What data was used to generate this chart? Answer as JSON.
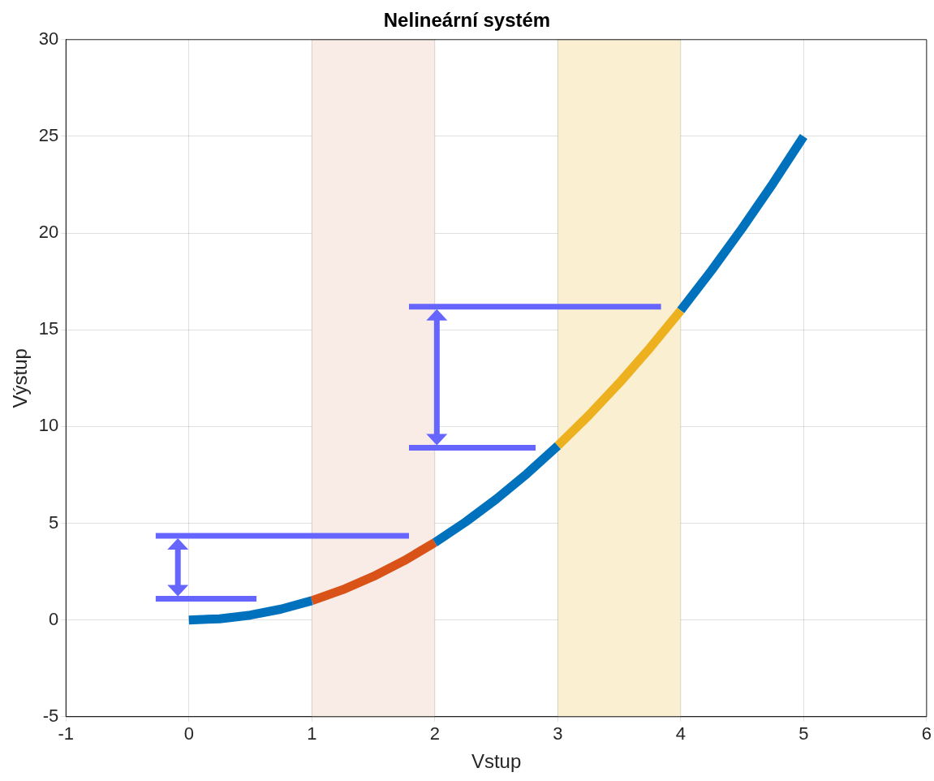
{
  "chart_data": {
    "type": "line",
    "title": "Nelineární systém",
    "xlabel": "Vstup",
    "ylabel": "Výstup",
    "xlim": [
      -1,
      6
    ],
    "xticks": [
      -1,
      0,
      1,
      2,
      3,
      4,
      5,
      6
    ],
    "ylim": [
      -5,
      30
    ],
    "yticks": [
      -5,
      0,
      5,
      10,
      15,
      20,
      25,
      30
    ],
    "grid": true,
    "legend": false,
    "marker": "none",
    "bands": [
      {
        "axis": "x",
        "from": 1,
        "to": 2,
        "color": "#f9ebe5"
      },
      {
        "axis": "x",
        "from": 3,
        "to": 4,
        "color": "#faefd1"
      }
    ],
    "series": [
      {
        "color": "#0072bd",
        "x": [
          0,
          0.25,
          0.5,
          0.75,
          1
        ],
        "values": [
          0,
          0.0625,
          0.25,
          0.5625,
          1
        ]
      },
      {
        "color": "#d95319",
        "x": [
          1,
          1.25,
          1.5,
          1.75,
          2
        ],
        "values": [
          1,
          1.5625,
          2.25,
          3.0625,
          4
        ]
      },
      {
        "color": "#0072bd",
        "x": [
          2,
          2.25,
          2.5,
          2.75,
          3
        ],
        "values": [
          4,
          5.0625,
          6.25,
          7.5625,
          9
        ]
      },
      {
        "color": "#edb120",
        "x": [
          3,
          3.25,
          3.5,
          3.75,
          4
        ],
        "values": [
          9,
          10.5625,
          12.25,
          14.0625,
          16
        ]
      },
      {
        "color": "#0072bd",
        "x": [
          4,
          4.25,
          4.5,
          4.75,
          5
        ],
        "values": [
          16,
          18.0625,
          20.25,
          22.5625,
          25
        ]
      },
      {
        "color": "#6666ff",
        "x": [
          -0.27,
          0.55
        ],
        "values": [
          1.1,
          1.1
        ]
      },
      {
        "color": "#6666ff",
        "x": [
          -0.27,
          1.79
        ],
        "values": [
          4.35,
          4.35
        ]
      },
      {
        "color": "#6666ff",
        "x": [
          1.79,
          2.82
        ],
        "values": [
          8.9,
          8.9
        ]
      },
      {
        "color": "#6666ff",
        "x": [
          1.79,
          3.84
        ],
        "values": [
          16.2,
          16.2
        ]
      }
    ]
  }
}
